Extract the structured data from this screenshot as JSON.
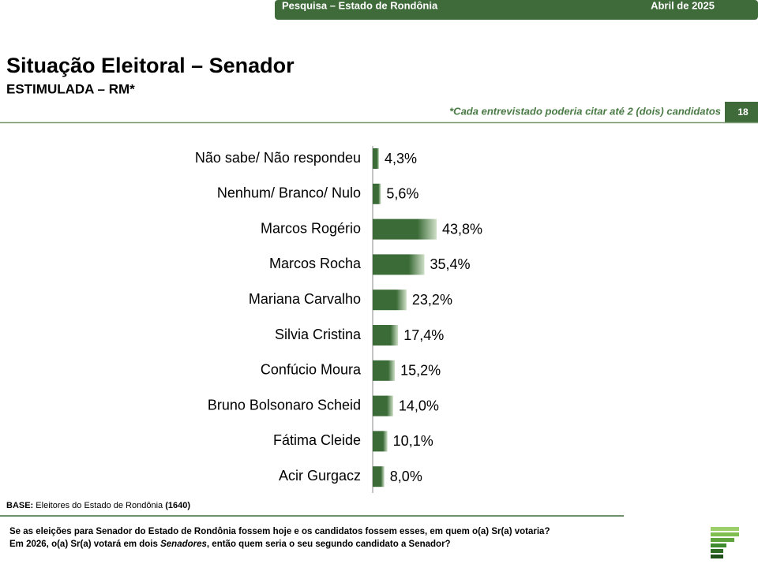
{
  "header": {
    "left": "Pesquisa – Estado de Rondônia",
    "right": "Abril de 2025"
  },
  "page_number": "18",
  "chart_data": {
    "type": "bar",
    "orientation": "horizontal",
    "title": "Situação Eleitoral – Senador",
    "subtitle": "ESTIMULADA – RM*",
    "note": "*Cada entrevistado poderia citar até 2 (dois) candidatos",
    "categories": [
      "Não sabe/ Não respondeu",
      "Nenhum/ Branco/ Nulo",
      "Marcos Rogério",
      "Marcos Rocha",
      "Mariana Carvalho",
      "Silvia Cristina",
      "Confúcio Moura",
      "Bruno Bolsonaro Scheid",
      "Fátima Cleide",
      "Acir Gurgacz"
    ],
    "values": [
      4.3,
      5.6,
      43.8,
      35.4,
      23.2,
      17.4,
      15.2,
      14.0,
      10.1,
      8.0
    ],
    "value_labels": [
      "4,3%",
      "5,6%",
      "43,8%",
      "35,4%",
      "23,2%",
      "17,4%",
      "15,2%",
      "14,0%",
      "10,1%",
      "8,0%"
    ],
    "color": "#3b6b37"
  },
  "footer": {
    "base_label": "BASE:",
    "base_text": "Eleitores do Estado de Rondônia",
    "base_n": "(1640)",
    "question_1": "Se as eleições para Senador do Estado de Rondônia fossem hoje e os candidatos fossem esses, em quem o(a) Sr(a) votaria?",
    "question_2_a": "Em 2026, o(a) Sr(a) votará em dois ",
    "question_2_b": "Senadores",
    "question_2_c": ", então quem seria o seu segundo candidato a Senador?"
  }
}
